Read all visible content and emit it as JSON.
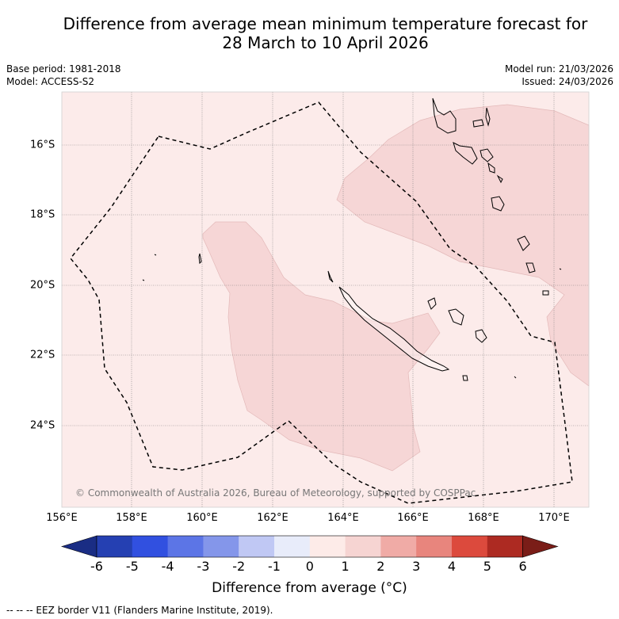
{
  "title": {
    "line1": "Difference from average mean minimum temperature forecast for",
    "line2": "28 March to 10 April 2026"
  },
  "meta": {
    "base_period": "Base period: 1981-2018",
    "model": "Model: ACCESS-S2",
    "model_run": "Model run: 21/03/2026",
    "issued": "Issued: 24/03/2026"
  },
  "map": {
    "longitude_labels": [
      "156°E",
      "158°E",
      "160°E",
      "162°E",
      "164°E",
      "166°E",
      "168°E",
      "170°E"
    ],
    "latitude_labels": [
      "16°S",
      "18°S",
      "20°S",
      "22°S",
      "24°S"
    ],
    "copyright": "© Commonwealth of Australia 2026, Bureau of Meteorology, supported by COSPPac",
    "background_anomaly_color": "#fcebea",
    "warm_anomaly_color": "#f6d6d6",
    "coastline_color": "#000000"
  },
  "colorbar": {
    "ticks": [
      "-6",
      "-5",
      "-4",
      "-3",
      "-2",
      "-1",
      "0",
      "1",
      "2",
      "3",
      "4",
      "5",
      "6"
    ],
    "colors": [
      "#1a2d84",
      "#2540b2",
      "#3150e0",
      "#5c75e6",
      "#8496ea",
      "#c0c8f4",
      "#e8ecfa",
      "#fdebe8",
      "#f6d4d2",
      "#f0aba6",
      "#e8857d",
      "#dc4a3d",
      "#ad2a22",
      "#7a1d18"
    ],
    "title": "Difference from average (°C)"
  },
  "legend": {
    "eez_label": "-- -- -- EEZ border V11 (Flanders Marine Institute, 2019)."
  }
}
